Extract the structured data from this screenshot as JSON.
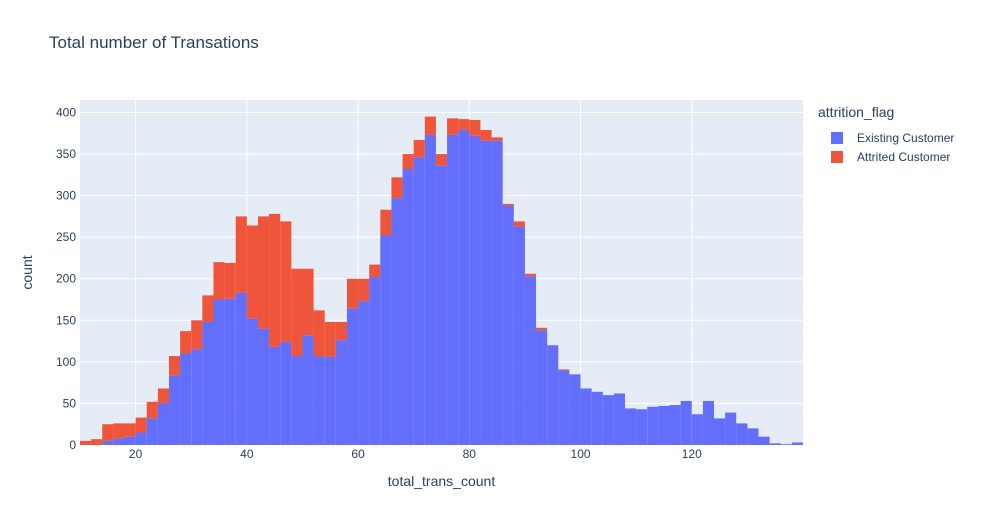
{
  "chart_data": {
    "type": "bar",
    "barmode": "stack",
    "title": "Total number of Transations",
    "xlabel": "total_trans_count",
    "ylabel": "count",
    "xlim": [
      10,
      140
    ],
    "ylim": [
      0,
      415
    ],
    "bin_width": 2,
    "x_start": 10,
    "xticks": [
      20,
      40,
      60,
      80,
      100,
      120
    ],
    "yticks": [
      0,
      50,
      100,
      150,
      200,
      250,
      300,
      350,
      400
    ],
    "legend_title": "attrition_flag",
    "legend_position": "top-right",
    "grid": true,
    "series": [
      {
        "name": "Existing Customer",
        "color": "#636efa",
        "values": [
          0,
          0,
          5,
          8,
          10,
          15,
          32,
          50,
          84,
          110,
          115,
          148,
          175,
          176,
          183,
          152,
          140,
          118,
          124,
          107,
          132,
          107,
          106,
          126,
          164,
          173,
          202,
          252,
          297,
          332,
          346,
          373,
          336,
          373,
          379,
          372,
          366,
          366,
          288,
          263,
          203,
          138,
          120,
          90,
          85,
          68,
          64,
          60,
          62,
          44,
          43,
          46,
          47,
          48,
          53,
          37,
          53,
          32,
          39,
          26,
          20,
          10,
          2,
          1,
          3
        ]
      },
      {
        "name": "Attrited Customer",
        "color": "#ef553b",
        "values": [
          5,
          7,
          20,
          18,
          16,
          18,
          20,
          18,
          23,
          27,
          35,
          32,
          45,
          43,
          92,
          112,
          135,
          160,
          145,
          105,
          80,
          55,
          42,
          22,
          36,
          27,
          15,
          31,
          25,
          18,
          21,
          22,
          14,
          20,
          13,
          19,
          13,
          4,
          2,
          6,
          3,
          3,
          0,
          1,
          0,
          0,
          0,
          0,
          0,
          0,
          0,
          0,
          0,
          0,
          0,
          0,
          0,
          0,
          0,
          0,
          0,
          0,
          0,
          0,
          0
        ]
      }
    ]
  }
}
